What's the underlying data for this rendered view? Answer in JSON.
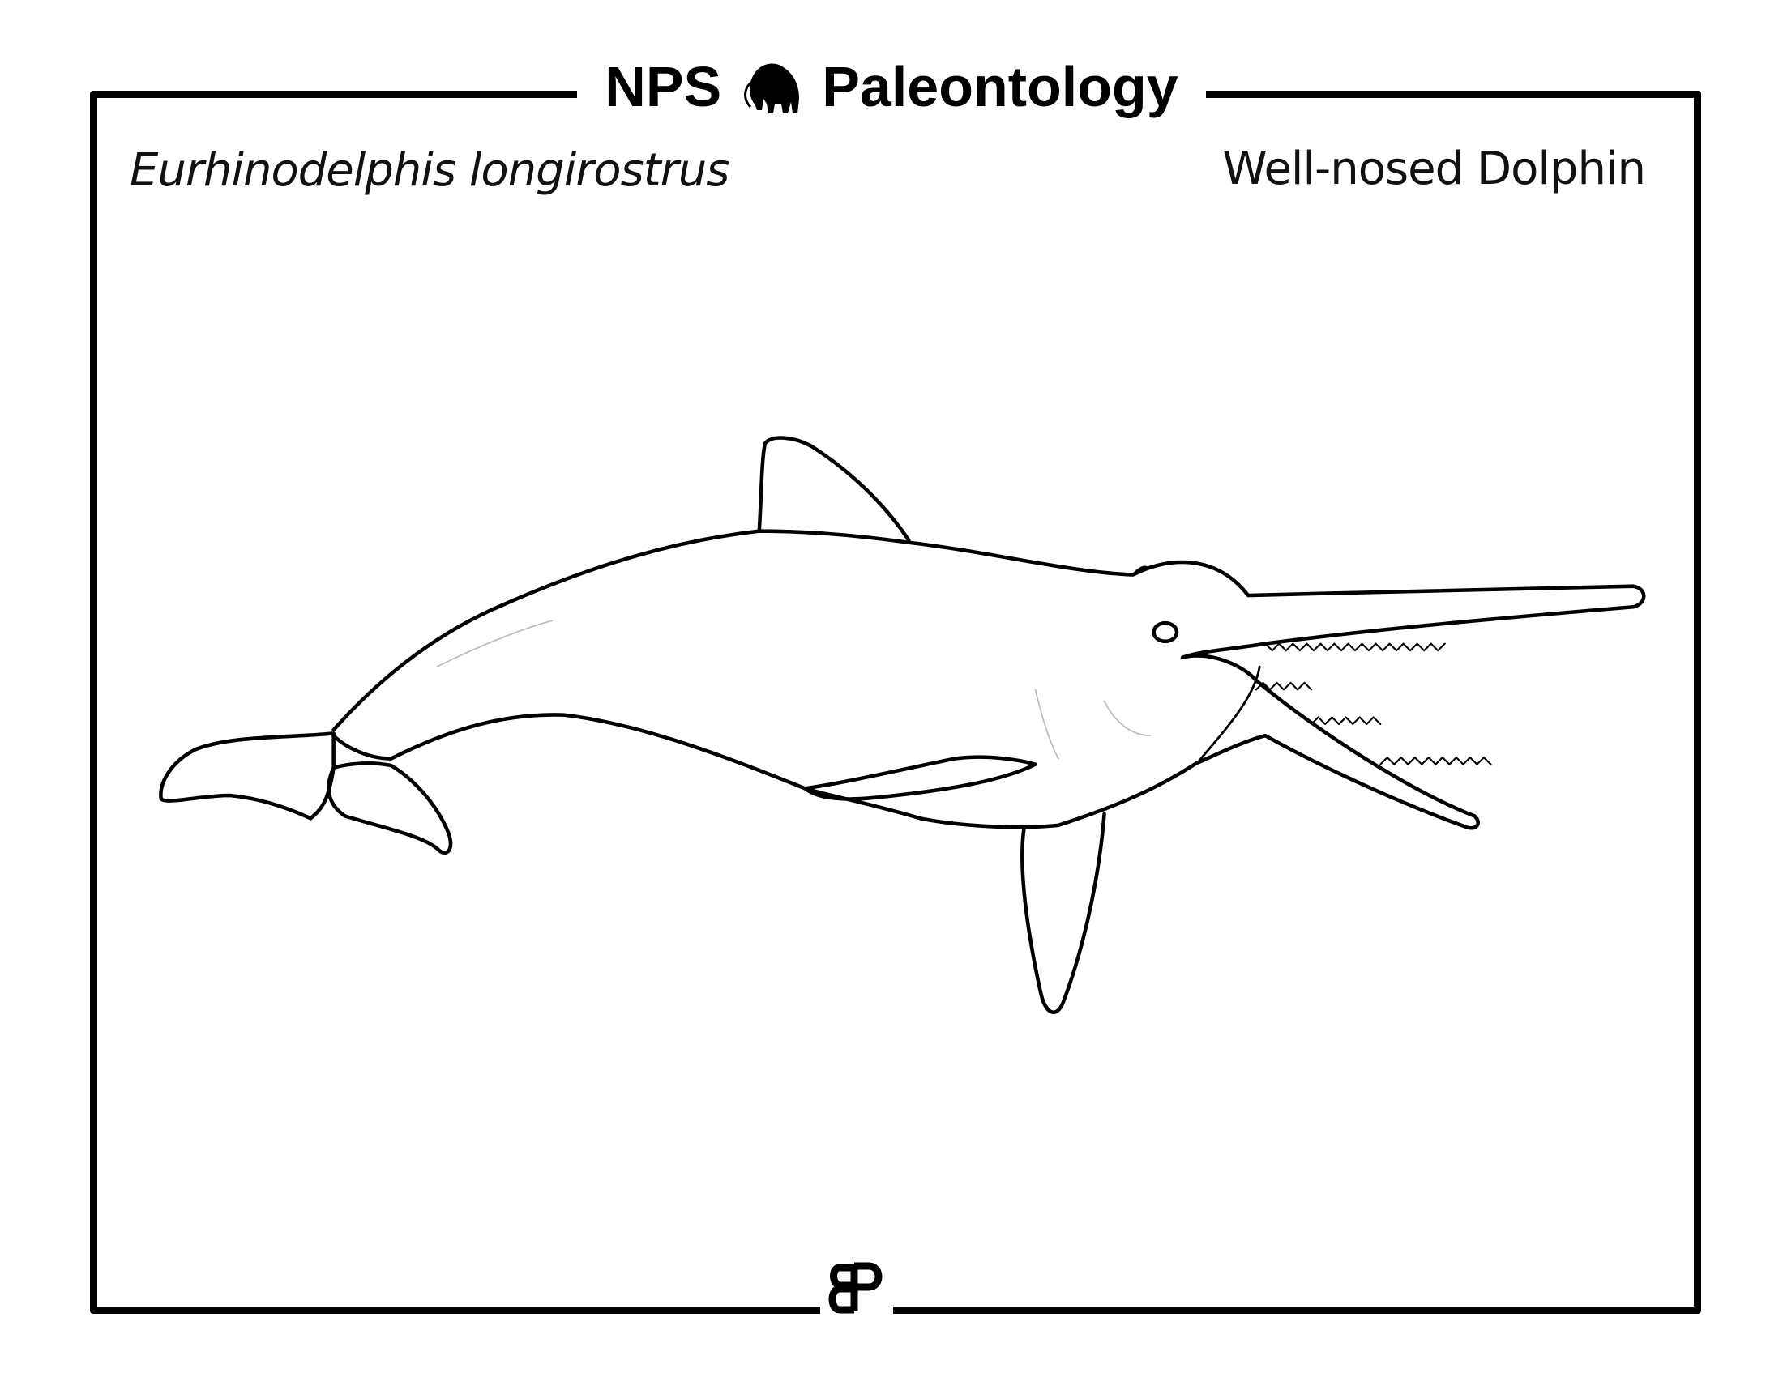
{
  "header": {
    "brand": "NPS",
    "title": "Paleontology",
    "icon": "mammoth-icon"
  },
  "species": {
    "scientific_name": "Eurhinodelphis longirostrus",
    "common_name": "Well-nosed Dolphin"
  },
  "footer": {
    "logo_text": "BP",
    "icon": "bp-monogram-icon"
  },
  "colors": {
    "ink": "#000000",
    "background": "#ffffff"
  }
}
